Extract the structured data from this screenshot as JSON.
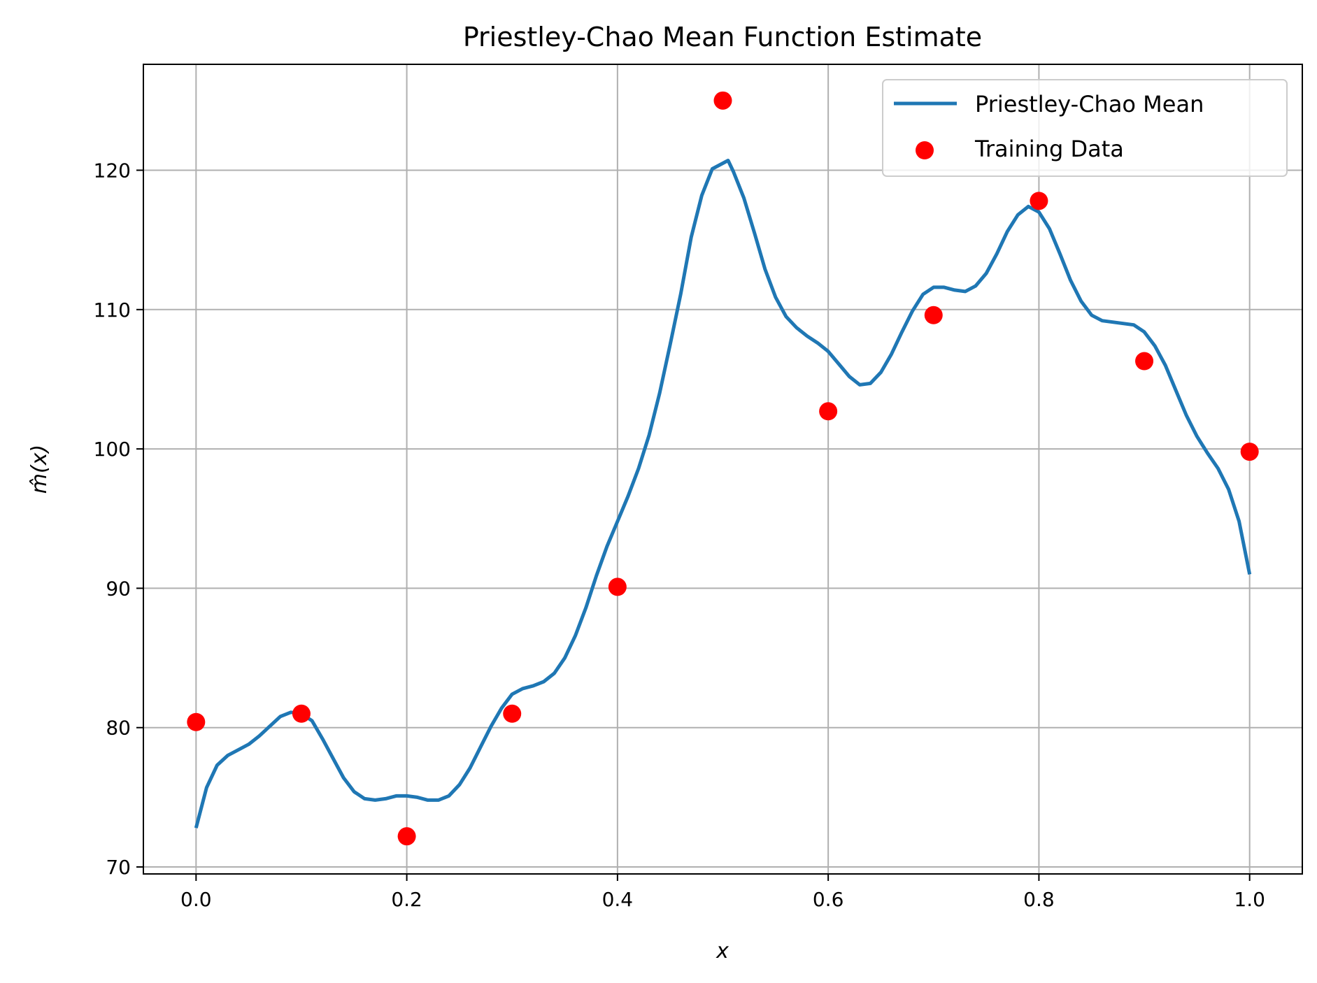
{
  "chart_data": {
    "type": "line",
    "title": "Priestley-Chao Mean Function Estimate",
    "xlabel": "x",
    "ylabel": "m̂(x)",
    "xlim": [
      -0.05,
      1.05
    ],
    "ylim": [
      69.5,
      127.6
    ],
    "x_ticks": [
      0.0,
      0.2,
      0.4,
      0.6,
      0.8,
      1.0
    ],
    "x_tick_labels": [
      "0.0",
      "0.2",
      "0.4",
      "0.6",
      "0.8",
      "1.0"
    ],
    "y_ticks": [
      70,
      80,
      90,
      100,
      110,
      120
    ],
    "y_tick_labels": [
      "70",
      "80",
      "90",
      "100",
      "110",
      "120"
    ],
    "grid": true,
    "legend_position": "top-right",
    "series": [
      {
        "name": "Priestley-Chao Mean",
        "kind": "line",
        "color": "#1f77b4",
        "x": [
          0.0,
          0.01,
          0.02,
          0.03,
          0.04,
          0.05,
          0.06,
          0.07,
          0.08,
          0.09,
          0.1,
          0.11,
          0.12,
          0.13,
          0.14,
          0.15,
          0.16,
          0.17,
          0.18,
          0.19,
          0.2,
          0.21,
          0.22,
          0.23,
          0.24,
          0.25,
          0.26,
          0.27,
          0.28,
          0.29,
          0.3,
          0.31,
          0.32,
          0.33,
          0.34,
          0.35,
          0.36,
          0.37,
          0.38,
          0.39,
          0.4,
          0.41,
          0.42,
          0.43,
          0.44,
          0.45,
          0.46,
          0.47,
          0.48,
          0.49,
          0.5,
          0.505,
          0.51,
          0.52,
          0.53,
          0.54,
          0.55,
          0.56,
          0.57,
          0.58,
          0.59,
          0.6,
          0.61,
          0.62,
          0.63,
          0.64,
          0.65,
          0.66,
          0.67,
          0.68,
          0.69,
          0.7,
          0.71,
          0.72,
          0.73,
          0.74,
          0.75,
          0.76,
          0.77,
          0.78,
          0.79,
          0.8,
          0.81,
          0.82,
          0.83,
          0.84,
          0.85,
          0.86,
          0.87,
          0.88,
          0.89,
          0.9,
          0.91,
          0.92,
          0.93,
          0.94,
          0.95,
          0.96,
          0.97,
          0.98,
          0.99,
          1.0
        ],
        "y": [
          72.8,
          75.7,
          77.3,
          78.0,
          78.4,
          78.8,
          79.4,
          80.1,
          80.8,
          81.1,
          81.0,
          80.5,
          79.2,
          77.8,
          76.4,
          75.4,
          74.9,
          74.8,
          74.9,
          75.1,
          75.1,
          75.0,
          74.8,
          74.8,
          75.1,
          75.9,
          77.1,
          78.6,
          80.1,
          81.4,
          82.4,
          82.8,
          83.0,
          83.3,
          83.9,
          85.0,
          86.6,
          88.6,
          90.9,
          93.0,
          94.8,
          96.6,
          98.6,
          101.0,
          104.0,
          107.5,
          111.1,
          115.2,
          118.2,
          120.1,
          120.5,
          120.7,
          119.9,
          118.0,
          115.5,
          112.9,
          110.9,
          109.5,
          108.7,
          108.1,
          107.6,
          107.0,
          106.1,
          105.2,
          104.6,
          104.7,
          105.5,
          106.8,
          108.4,
          109.9,
          111.1,
          111.6,
          111.6,
          111.4,
          111.3,
          111.7,
          112.6,
          114.0,
          115.6,
          116.8,
          117.4,
          117.0,
          115.8,
          114.0,
          112.1,
          110.6,
          109.6,
          109.2,
          109.1,
          109.0,
          108.9,
          108.4,
          107.4,
          106.0,
          104.2,
          102.4,
          100.9,
          99.7,
          98.6,
          97.1,
          94.8,
          91.0
        ]
      },
      {
        "name": "Training Data",
        "kind": "scatter",
        "color": "#ff0000",
        "x": [
          0.0,
          0.1,
          0.2,
          0.3,
          0.4,
          0.5,
          0.6,
          0.7,
          0.8,
          0.9,
          1.0
        ],
        "y": [
          80.4,
          81.0,
          72.2,
          81.0,
          90.1,
          125.0,
          102.7,
          109.6,
          117.8,
          106.3,
          99.8
        ]
      }
    ]
  }
}
